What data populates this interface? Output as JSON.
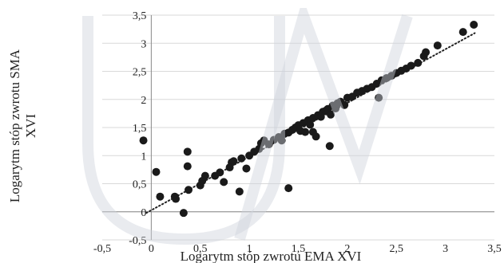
{
  "chart_data": {
    "type": "scatter",
    "xlabel": "Logarytm stóp zwrotu EMA XVI",
    "ylabel_lines": [
      "Logarytm stóp zwrotu SMA",
      "XVI"
    ],
    "xlim": [
      -0.5,
      3.5
    ],
    "ylim": [
      -0.5,
      3.5
    ],
    "x_ticks": [
      "-0,5",
      "0",
      "0,5",
      "1",
      "1,5",
      "2",
      "2,5",
      "3",
      "3,5"
    ],
    "y_ticks": [
      "-0,5",
      "0",
      "0,5",
      "1",
      "1,5",
      "2",
      "2,5",
      "3",
      "3,5"
    ],
    "grid": "horizontal",
    "trendline": {
      "style": "dotted",
      "x": [
        -0.05,
        3.3
      ],
      "y": [
        -0.02,
        3.18
      ]
    },
    "colors": {
      "points": "#1a1a1a",
      "grid": "#d9d9d9",
      "axis": "#888888",
      "watermark": "#cfd3dc"
    },
    "series": [
      {
        "points": [
          [
            -0.08,
            1.27
          ],
          [
            0.05,
            0.71
          ],
          [
            0.09,
            0.27
          ],
          [
            0.24,
            0.27
          ],
          [
            0.25,
            0.23
          ],
          [
            0.33,
            -0.02
          ],
          [
            0.37,
            1.07
          ],
          [
            0.37,
            0.81
          ],
          [
            0.38,
            0.39
          ],
          [
            0.5,
            0.47
          ],
          [
            0.52,
            0.55
          ],
          [
            0.55,
            0.64
          ],
          [
            0.65,
            0.64
          ],
          [
            0.7,
            0.7
          ],
          [
            0.74,
            0.53
          ],
          [
            0.8,
            0.79
          ],
          [
            0.82,
            0.88
          ],
          [
            0.84,
            0.9
          ],
          [
            0.9,
            0.36
          ],
          [
            0.92,
            0.95
          ],
          [
            0.97,
            0.77
          ],
          [
            1.0,
            1.0
          ],
          [
            1.05,
            1.07
          ],
          [
            1.1,
            1.12
          ],
          [
            1.12,
            1.22
          ],
          [
            1.15,
            1.27
          ],
          [
            1.2,
            1.2
          ],
          [
            1.25,
            1.28
          ],
          [
            1.3,
            1.33
          ],
          [
            1.33,
            1.27
          ],
          [
            1.36,
            1.39
          ],
          [
            1.4,
            1.41
          ],
          [
            1.4,
            0.42
          ],
          [
            1.44,
            1.46
          ],
          [
            1.47,
            1.5
          ],
          [
            1.5,
            1.54
          ],
          [
            1.52,
            1.44
          ],
          [
            1.55,
            1.58
          ],
          [
            1.57,
            1.42
          ],
          [
            1.6,
            1.63
          ],
          [
            1.62,
            1.55
          ],
          [
            1.65,
            1.67
          ],
          [
            1.65,
            1.42
          ],
          [
            1.68,
            1.34
          ],
          [
            1.7,
            1.72
          ],
          [
            1.73,
            1.69
          ],
          [
            1.75,
            1.78
          ],
          [
            1.78,
            1.8
          ],
          [
            1.8,
            1.83
          ],
          [
            1.82,
            1.17
          ],
          [
            1.83,
            1.73
          ],
          [
            1.85,
            1.89
          ],
          [
            1.88,
            1.84
          ],
          [
            1.9,
            1.93
          ],
          [
            1.93,
            1.96
          ],
          [
            1.97,
            1.9
          ],
          [
            2.0,
            2.03
          ],
          [
            2.05,
            2.05
          ],
          [
            2.1,
            2.12
          ],
          [
            2.15,
            2.15
          ],
          [
            2.2,
            2.19
          ],
          [
            2.25,
            2.22
          ],
          [
            2.3,
            2.28
          ],
          [
            2.32,
            2.03
          ],
          [
            2.35,
            2.34
          ],
          [
            2.4,
            2.38
          ],
          [
            2.45,
            2.42
          ],
          [
            2.5,
            2.47
          ],
          [
            2.55,
            2.51
          ],
          [
            2.6,
            2.55
          ],
          [
            2.65,
            2.6
          ],
          [
            2.72,
            2.65
          ],
          [
            2.78,
            2.77
          ],
          [
            2.8,
            2.84
          ],
          [
            2.92,
            2.96
          ],
          [
            3.18,
            3.2
          ],
          [
            3.29,
            3.33
          ]
        ]
      }
    ]
  }
}
